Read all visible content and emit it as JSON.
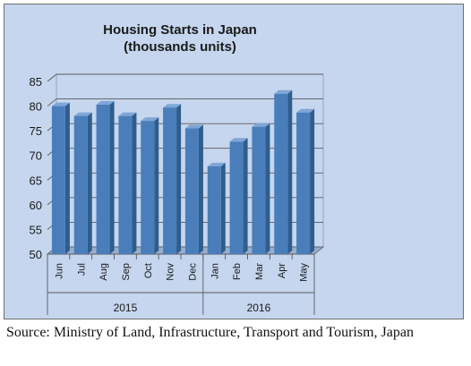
{
  "chart_data": {
    "type": "bar",
    "title_lines": [
      "Housing Starts in Japan",
      "(thousands units)"
    ],
    "categories": [
      "Jun",
      "Jul",
      "Aug",
      "Sep",
      "Oct",
      "Nov",
      "Dec",
      "Jan",
      "Feb",
      "Mar",
      "Apr",
      "May"
    ],
    "groups": [
      {
        "label": "2015",
        "categories": [
          "Jun",
          "Jul",
          "Aug",
          "Sep",
          "Oct",
          "Nov",
          "Dec"
        ]
      },
      {
        "label": "2016",
        "categories": [
          "Jan",
          "Feb",
          "Mar",
          "Apr",
          "May"
        ]
      }
    ],
    "values": [
      80.0,
      78.0,
      80.3,
      78.0,
      77.0,
      79.7,
      75.5,
      67.8,
      72.8,
      75.8,
      82.5,
      78.7
    ],
    "ylim": [
      50,
      85
    ],
    "yticks": [
      50,
      55,
      60,
      65,
      70,
      75,
      80,
      85
    ],
    "grid": true,
    "colors": {
      "bar_front": "#4a7ebb",
      "bar_side": "#2f5d8c",
      "bar_top": "#7fa6d6",
      "plot_background": "#c5d6ee",
      "floor": "#9aaecb"
    }
  },
  "source": "Source: Ministry of Land, Infrastructure, Transport and Tourism, Japan"
}
